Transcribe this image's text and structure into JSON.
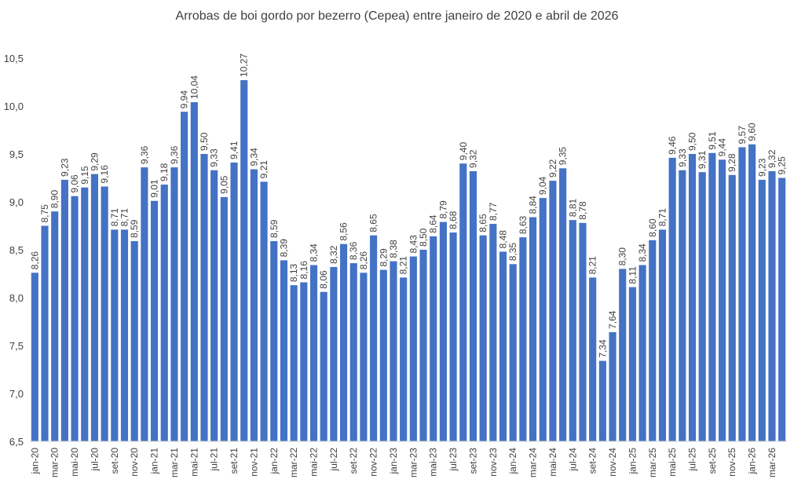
{
  "chart_data": {
    "type": "bar",
    "title": "Arrobas de boi gordo por bezerro (Cepea) entre janeiro de 2020 e abril de 2026",
    "xlabel": "",
    "ylabel": "",
    "ylim": [
      6.5,
      10.5
    ],
    "yticks": [
      "6,5",
      "7,0",
      "7,5",
      "8,0",
      "8,5",
      "9,0",
      "9,5",
      "10,0",
      "10,5"
    ],
    "grid": false,
    "legend": "none",
    "bar_color": "#4472C4",
    "categories": [
      "jan-20",
      "fev-20",
      "mar-20",
      "abr-20",
      "mai-20",
      "jun-20",
      "jul-20",
      "ago-20",
      "set-20",
      "out-20",
      "nov-20",
      "dez-20",
      "jan-21",
      "fev-21",
      "mar-21",
      "abr-21",
      "mai-21",
      "jun-21",
      "jul-21",
      "ago-21",
      "set-21",
      "out-21",
      "nov-21",
      "dez-21",
      "jan-22",
      "fev-22",
      "mar-22",
      "abr-22",
      "mai-22",
      "jun-22",
      "jul-22",
      "ago-22",
      "set-22",
      "out-22",
      "nov-22",
      "dez-22",
      "jan-23",
      "fev-23",
      "mar-23",
      "abr-23",
      "mai-23",
      "jun-23",
      "jul-23",
      "ago-23",
      "set-23",
      "out-23",
      "nov-23",
      "dez-23",
      "jan-24",
      "fev-24",
      "mar-24",
      "abr-24",
      "mai-24",
      "jun-24",
      "jul-24",
      "ago-24",
      "set-24",
      "out-24",
      "nov-24",
      "dez-24",
      "jan-25",
      "fev-25",
      "mar-25",
      "abr-25",
      "mai-25",
      "jun-25",
      "jul-25",
      "ago-25",
      "set-25",
      "out-25",
      "nov-25",
      "dez-25",
      "jan-26",
      "fev-26",
      "mar-26",
      "abr-26"
    ],
    "values": [
      8.26,
      8.75,
      8.9,
      9.23,
      9.06,
      9.15,
      9.29,
      9.16,
      8.71,
      8.71,
      8.59,
      9.36,
      9.01,
      9.18,
      9.36,
      9.94,
      10.04,
      9.5,
      9.33,
      9.05,
      9.41,
      10.27,
      9.34,
      9.21,
      8.59,
      8.39,
      8.13,
      8.16,
      8.34,
      8.06,
      8.32,
      8.56,
      8.36,
      8.26,
      8.65,
      8.29,
      8.38,
      8.21,
      8.43,
      8.5,
      8.64,
      8.79,
      8.68,
      9.4,
      9.32,
      8.65,
      8.77,
      8.48,
      8.35,
      8.63,
      8.84,
      9.04,
      9.22,
      9.35,
      8.81,
      8.78,
      8.21,
      7.34,
      7.64,
      8.3,
      8.11,
      8.34,
      8.6,
      8.71,
      9.46,
      9.33,
      9.5,
      9.31,
      9.51,
      9.44,
      9.28,
      9.57,
      9.6,
      9.23,
      9.32,
      9.25
    ],
    "value_labels": [
      "8,26",
      "8,75",
      "8,90",
      "9,23",
      "9,06",
      "9,15",
      "9,29",
      "9,16",
      "8,71",
      "8,71",
      "8,59",
      "9,36",
      "9,01",
      "9,18",
      "9,36",
      "9,94",
      "10,04",
      "9,50",
      "9,33",
      "9,05",
      "9,41",
      "10,27",
      "9,34",
      "9,21",
      "8,59",
      "8,39",
      "8,13",
      "8,16",
      "8,34",
      "8,06",
      "8,32",
      "8,56",
      "8,36",
      "8,26",
      "8,65",
      "8,29",
      "8,38",
      "8,21",
      "8,43",
      "8,50",
      "8,64",
      "8,79",
      "8,68",
      "9,40",
      "9,32",
      "8,65",
      "8,77",
      "8,48",
      "8,35",
      "8,63",
      "8,84",
      "9,04",
      "9,22",
      "9,35",
      "8,81",
      "8,78",
      "8,21",
      "7,34",
      "7,64",
      "8,30",
      "8,11",
      "8,34",
      "8,60",
      "8,71",
      "9,46",
      "9,33",
      "9,50",
      "9,31",
      "9,51",
      "9,44",
      "9,28",
      "9,57",
      "9,60",
      "9,23",
      "9,32",
      "9,25"
    ],
    "x_tick_labels": [
      "jan-20",
      "mar-20",
      "mai-20",
      "jul-20",
      "set-20",
      "nov-20",
      "jan-21",
      "mar-21",
      "mai-21",
      "jul-21",
      "set-21",
      "nov-21",
      "jan-22",
      "mar-22",
      "mai-22",
      "jul-22",
      "set-22",
      "nov-22",
      "jan-23",
      "mar-23",
      "mai-23",
      "jul-23",
      "set-23",
      "nov-23",
      "jan-24",
      "mar-24",
      "mai-24",
      "jul-24",
      "set-24",
      "nov-24",
      "jan-25",
      "mar-25",
      "mai-25",
      "jul-25",
      "set-25",
      "nov-25",
      "jan-26",
      "mar-26"
    ]
  }
}
